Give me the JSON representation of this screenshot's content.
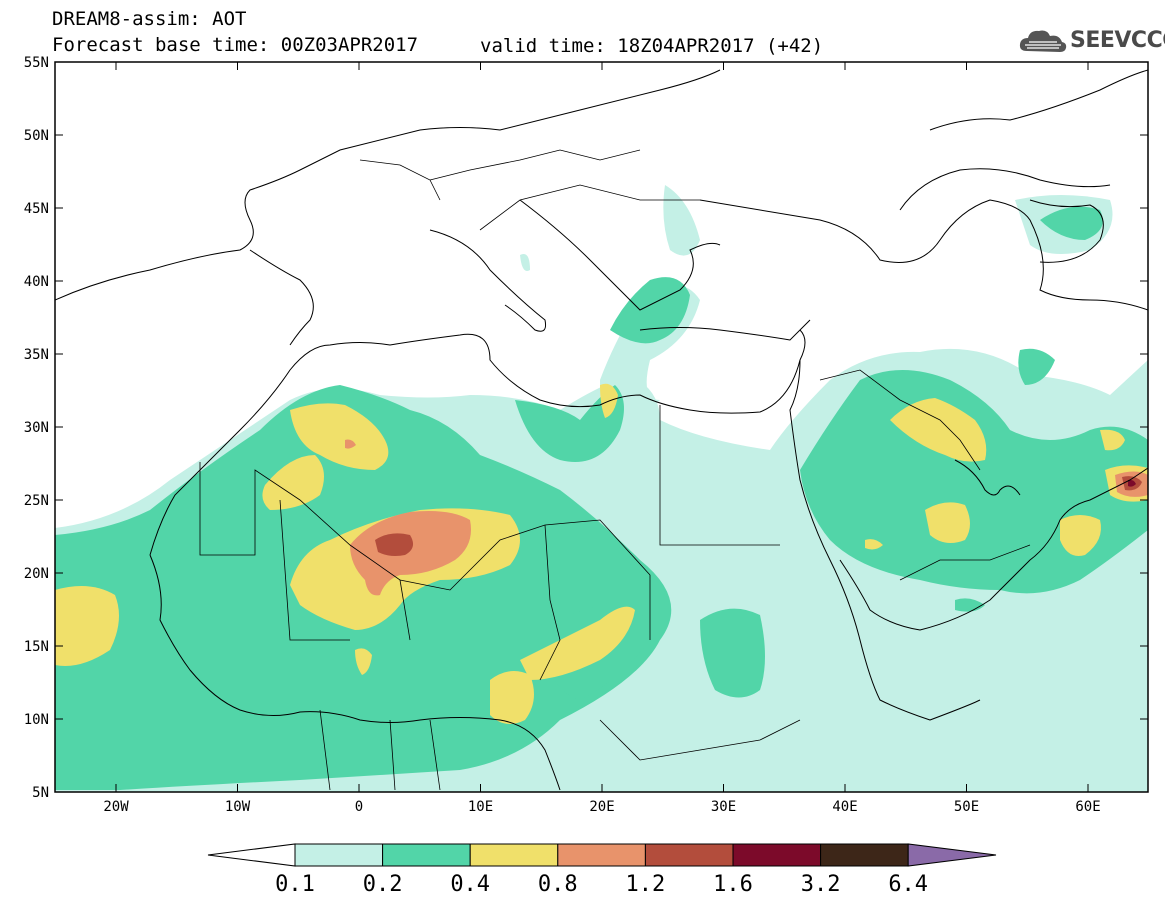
{
  "header": {
    "model_line": "DREAM8-assim: AOT",
    "base_time_line": "Forecast base time: 00Z03APR2017",
    "valid_time_line": "valid time: 18Z04APR2017 (+42)"
  },
  "logo": {
    "text": "SEEVCCC",
    "icon": "cloud-icon"
  },
  "map": {
    "lat_labels": [
      "55N",
      "50N",
      "45N",
      "40N",
      "35N",
      "30N",
      "25N",
      "20N",
      "15N",
      "10N",
      "5N"
    ],
    "lon_labels": [
      "20W",
      "10W",
      "0",
      "10E",
      "20E",
      "30E",
      "40E",
      "50E",
      "60E"
    ],
    "colors": {
      "c01": "#c4f0e6",
      "c02": "#52d5a8",
      "c04": "#f0e06a",
      "c08": "#e8936b",
      "c12": "#b34d3c",
      "c16": "#7c0a2a",
      "c32": "#3d2618",
      "c64": "#8a6aa8",
      "land_line": "#000000"
    }
  },
  "colorbar": {
    "labels": [
      "0.1",
      "0.2",
      "0.4",
      "0.8",
      "1.2",
      "1.6",
      "3.2",
      "6.4"
    ],
    "colors": [
      "#c4f0e6",
      "#52d5a8",
      "#f0e06a",
      "#e8936b",
      "#b34d3c",
      "#7c0a2a",
      "#3d2618"
    ],
    "under_color": "#ffffff",
    "over_color": "#8a6aa8"
  }
}
